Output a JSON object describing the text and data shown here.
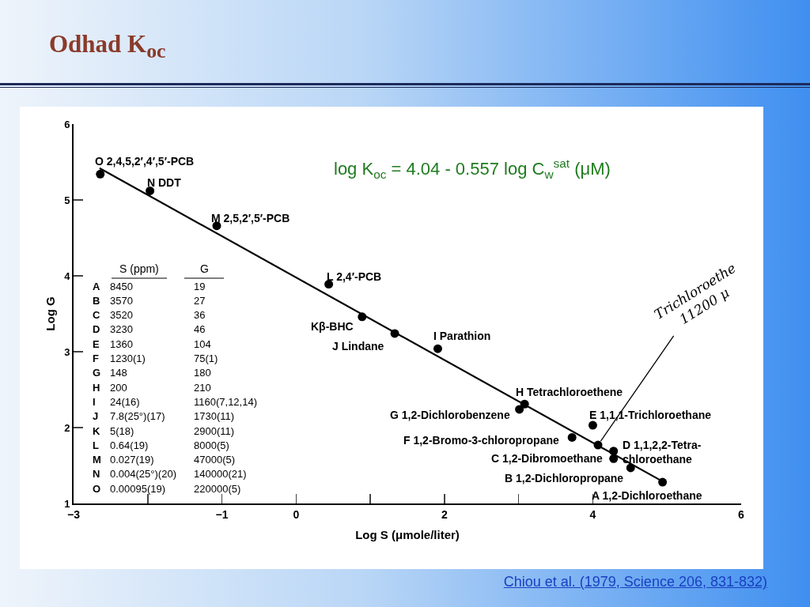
{
  "chart_data": {
    "type": "scatter",
    "title": "Odhad K$_{oc}$",
    "xlabel": "Log S (μmole/liter)",
    "ylabel": "Log G",
    "xlim": [
      -3,
      6
    ],
    "ylim": [
      1,
      6
    ],
    "xticks": [
      -3,
      {
        "value": -2,
        "label": null
      },
      -1,
      0,
      {
        "value": 1,
        "label": null
      },
      2,
      {
        "value": 3,
        "label": null
      },
      4,
      6
    ],
    "yticks": [
      1,
      2,
      3,
      4,
      5,
      6
    ],
    "grid": false,
    "series": [
      {
        "marker": "circle",
        "color": "#000000",
        "x": [
          -2.64,
          -1.97,
          -1.07,
          0.44,
          0.89,
          1.33,
          1.91,
          3.08,
          3.01,
          3.72,
          4.0,
          4.28,
          4.28,
          4.51,
          4.94,
          4.07
        ],
        "values": [
          5.34,
          5.12,
          4.66,
          3.89,
          3.46,
          3.24,
          3.04,
          2.31,
          2.24,
          1.87,
          2.03,
          1.69,
          1.59,
          1.47,
          1.28,
          1.77
        ]
      },
      {
        "type": "line",
        "marker": "none",
        "color": "#000000",
        "line_style": "solid",
        "x": [
          -2.65,
          4.94
        ],
        "values": [
          5.42,
          1.29
        ]
      }
    ],
    "annotations": [
      "log K$_{oc}$ = 4.04 - 0.557 log C$_{w}$$^{sat}$ (μM)",
      "Chiou et al. (1979, Science 206, 831-832)",
      "S (ppm)",
      "G",
      "A",
      "8450",
      "19",
      "B",
      "3570",
      "27",
      "C",
      "3520",
      "36",
      "D",
      "3230",
      "46",
      "E",
      "1360",
      "104",
      "F",
      "1230(1)",
      "75(1)",
      "G",
      "148",
      "180",
      "H",
      "200",
      "210",
      "I",
      "24(16)",
      "1160(7,12,14)",
      "J",
      "7.8(25°)(17)",
      "1730(11)",
      "K",
      "5(18)",
      "2900(11)",
      "L",
      "0.64(19)",
      "8000(5)",
      "M",
      "0.027(19)",
      "47000(5)",
      "N",
      "0.004(25°)(20)",
      "140000(21)",
      "O",
      "0.00095(19)",
      "220000(5)",
      {
        "text": "O 2,4,5,2′,4′,5′-PCB",
        "x": -2.64,
        "y": 5.34
      },
      {
        "text": "N DDT",
        "x": -1.97,
        "y": 5.12
      },
      {
        "text": "M 2,5,2′,5′-PCB",
        "x": -1.07,
        "y": 4.66
      },
      {
        "text": "L 2,4′-PCB",
        "x": 0.44,
        "y": 3.89
      },
      {
        "text": "Kβ-BHC",
        "x": 0.89,
        "y": 3.46
      },
      {
        "text": "J Lindane",
        "x": 1.33,
        "y": 3.24
      },
      {
        "text": "I Parathion",
        "x": 1.91,
        "y": 3.04
      },
      {
        "text": "H Tetrachloroethene",
        "x": 3.08,
        "y": 2.31
      },
      {
        "text": "G 1,2-Dichlorobenzene",
        "x": 3.01,
        "y": 2.24
      },
      {
        "text": "F 1,2-Bromo-3-chloropropane",
        "x": 3.72,
        "y": 1.87
      },
      {
        "text": "E 1,1,1-Trichloroethane",
        "x": 4.0,
        "y": 2.03
      },
      {
        "text": "D 1,1,2,2-Tetra-\nchloroethane",
        "x": 4.28,
        "y": 1.69
      },
      {
        "text": "C 1,2-Dibromoethane",
        "x": 4.28,
        "y": 1.59
      },
      {
        "text": "B 1,2-Dichloropropane",
        "x": 4.51,
        "y": 1.47
      },
      {
        "text": "A 1,2-Dichloroethane",
        "x": 4.94,
        "y": 1.28
      },
      {
        "text": "Trichloroethe\n11200 μ",
        "x": 4.07,
        "y": 1.77
      }
    ]
  }
}
